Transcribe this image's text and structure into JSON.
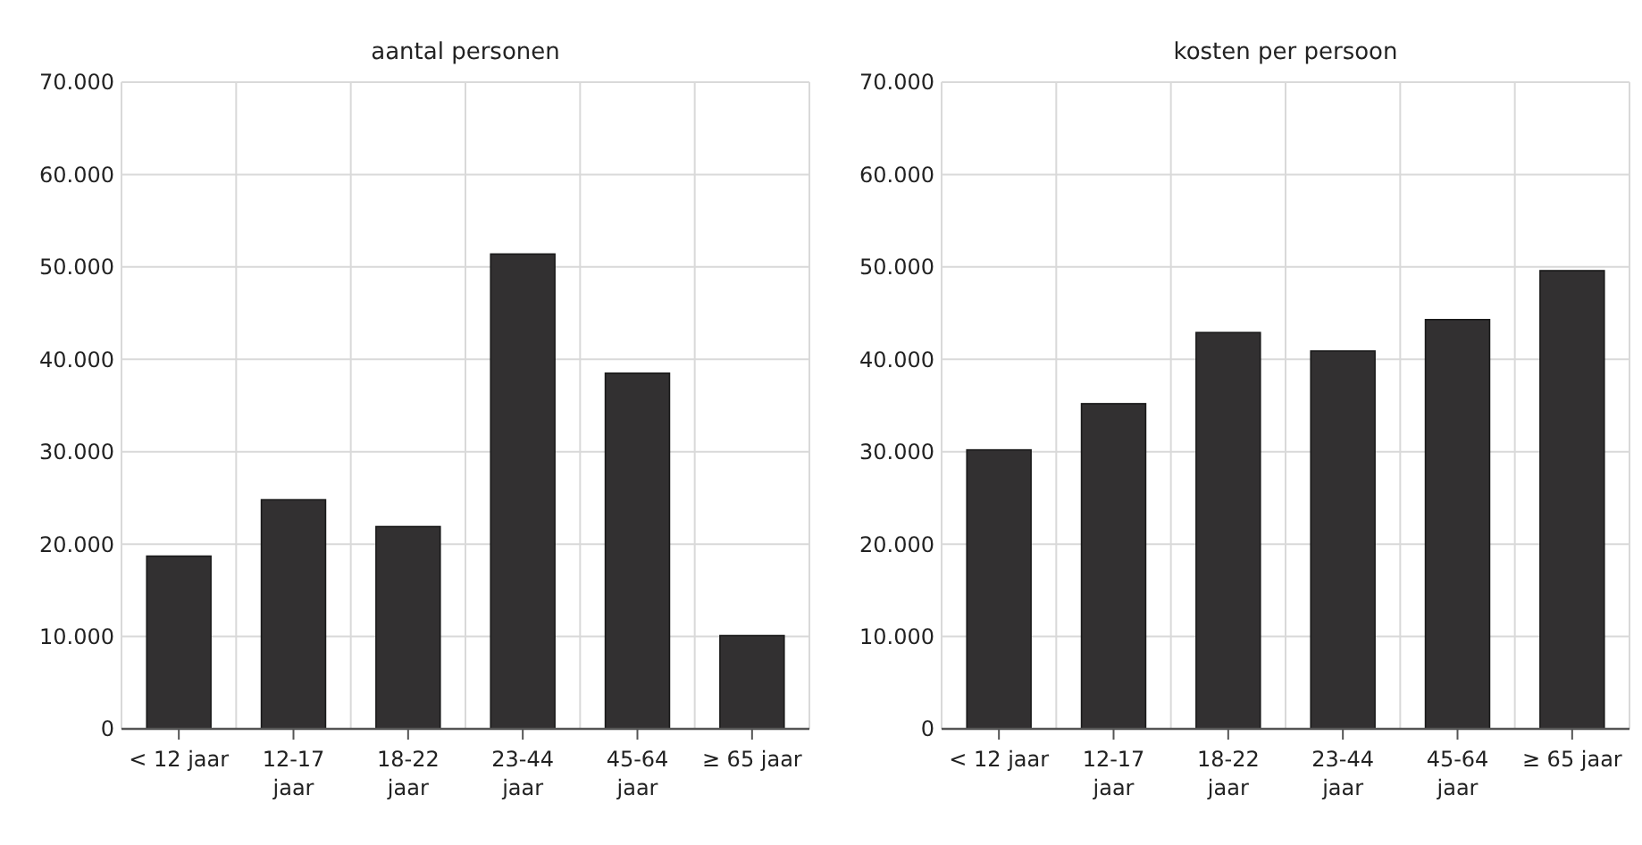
{
  "chart_data": [
    {
      "type": "bar",
      "title": "aantal personen",
      "categories": [
        "< 12 jaar",
        "12-17\njaar",
        "18-22\njaar",
        "23-44\njaar",
        "45-64\njaar",
        "≥ 65 jaar"
      ],
      "values": [
        18700,
        24800,
        21900,
        51400,
        38500,
        10100
      ],
      "color": "#323031",
      "ylim": [
        0,
        70000
      ],
      "yticks": [
        {
          "value": 0,
          "label": "0"
        },
        {
          "value": 10000,
          "label": "10.000"
        },
        {
          "value": 20000,
          "label": "20.000"
        },
        {
          "value": 30000,
          "label": "30.000"
        },
        {
          "value": 40000,
          "label": "40.000"
        },
        {
          "value": 50000,
          "label": "50.000"
        },
        {
          "value": 60000,
          "label": "60.000"
        },
        {
          "value": 70000,
          "label": "70.000"
        }
      ],
      "grid": true
    },
    {
      "type": "bar",
      "title": "kosten per persoon",
      "categories": [
        "< 12 jaar",
        "12-17\njaar",
        "18-22\njaar",
        "23-44\njaar",
        "45-64\njaar",
        "≥  65 jaar"
      ],
      "values": [
        30200,
        35200,
        42900,
        40900,
        44300,
        49600
      ],
      "color": "#323031",
      "ylim": [
        0,
        70000
      ],
      "yticks": [
        {
          "value": 0,
          "label": "0"
        },
        {
          "value": 10000,
          "label": "10.000"
        },
        {
          "value": 20000,
          "label": "20.000"
        },
        {
          "value": 30000,
          "label": "30.000"
        },
        {
          "value": 40000,
          "label": "40.000"
        },
        {
          "value": 50000,
          "label": "50.000"
        },
        {
          "value": 60000,
          "label": "60.000"
        },
        {
          "value": 70000,
          "label": "70.000"
        }
      ],
      "grid": true
    }
  ]
}
